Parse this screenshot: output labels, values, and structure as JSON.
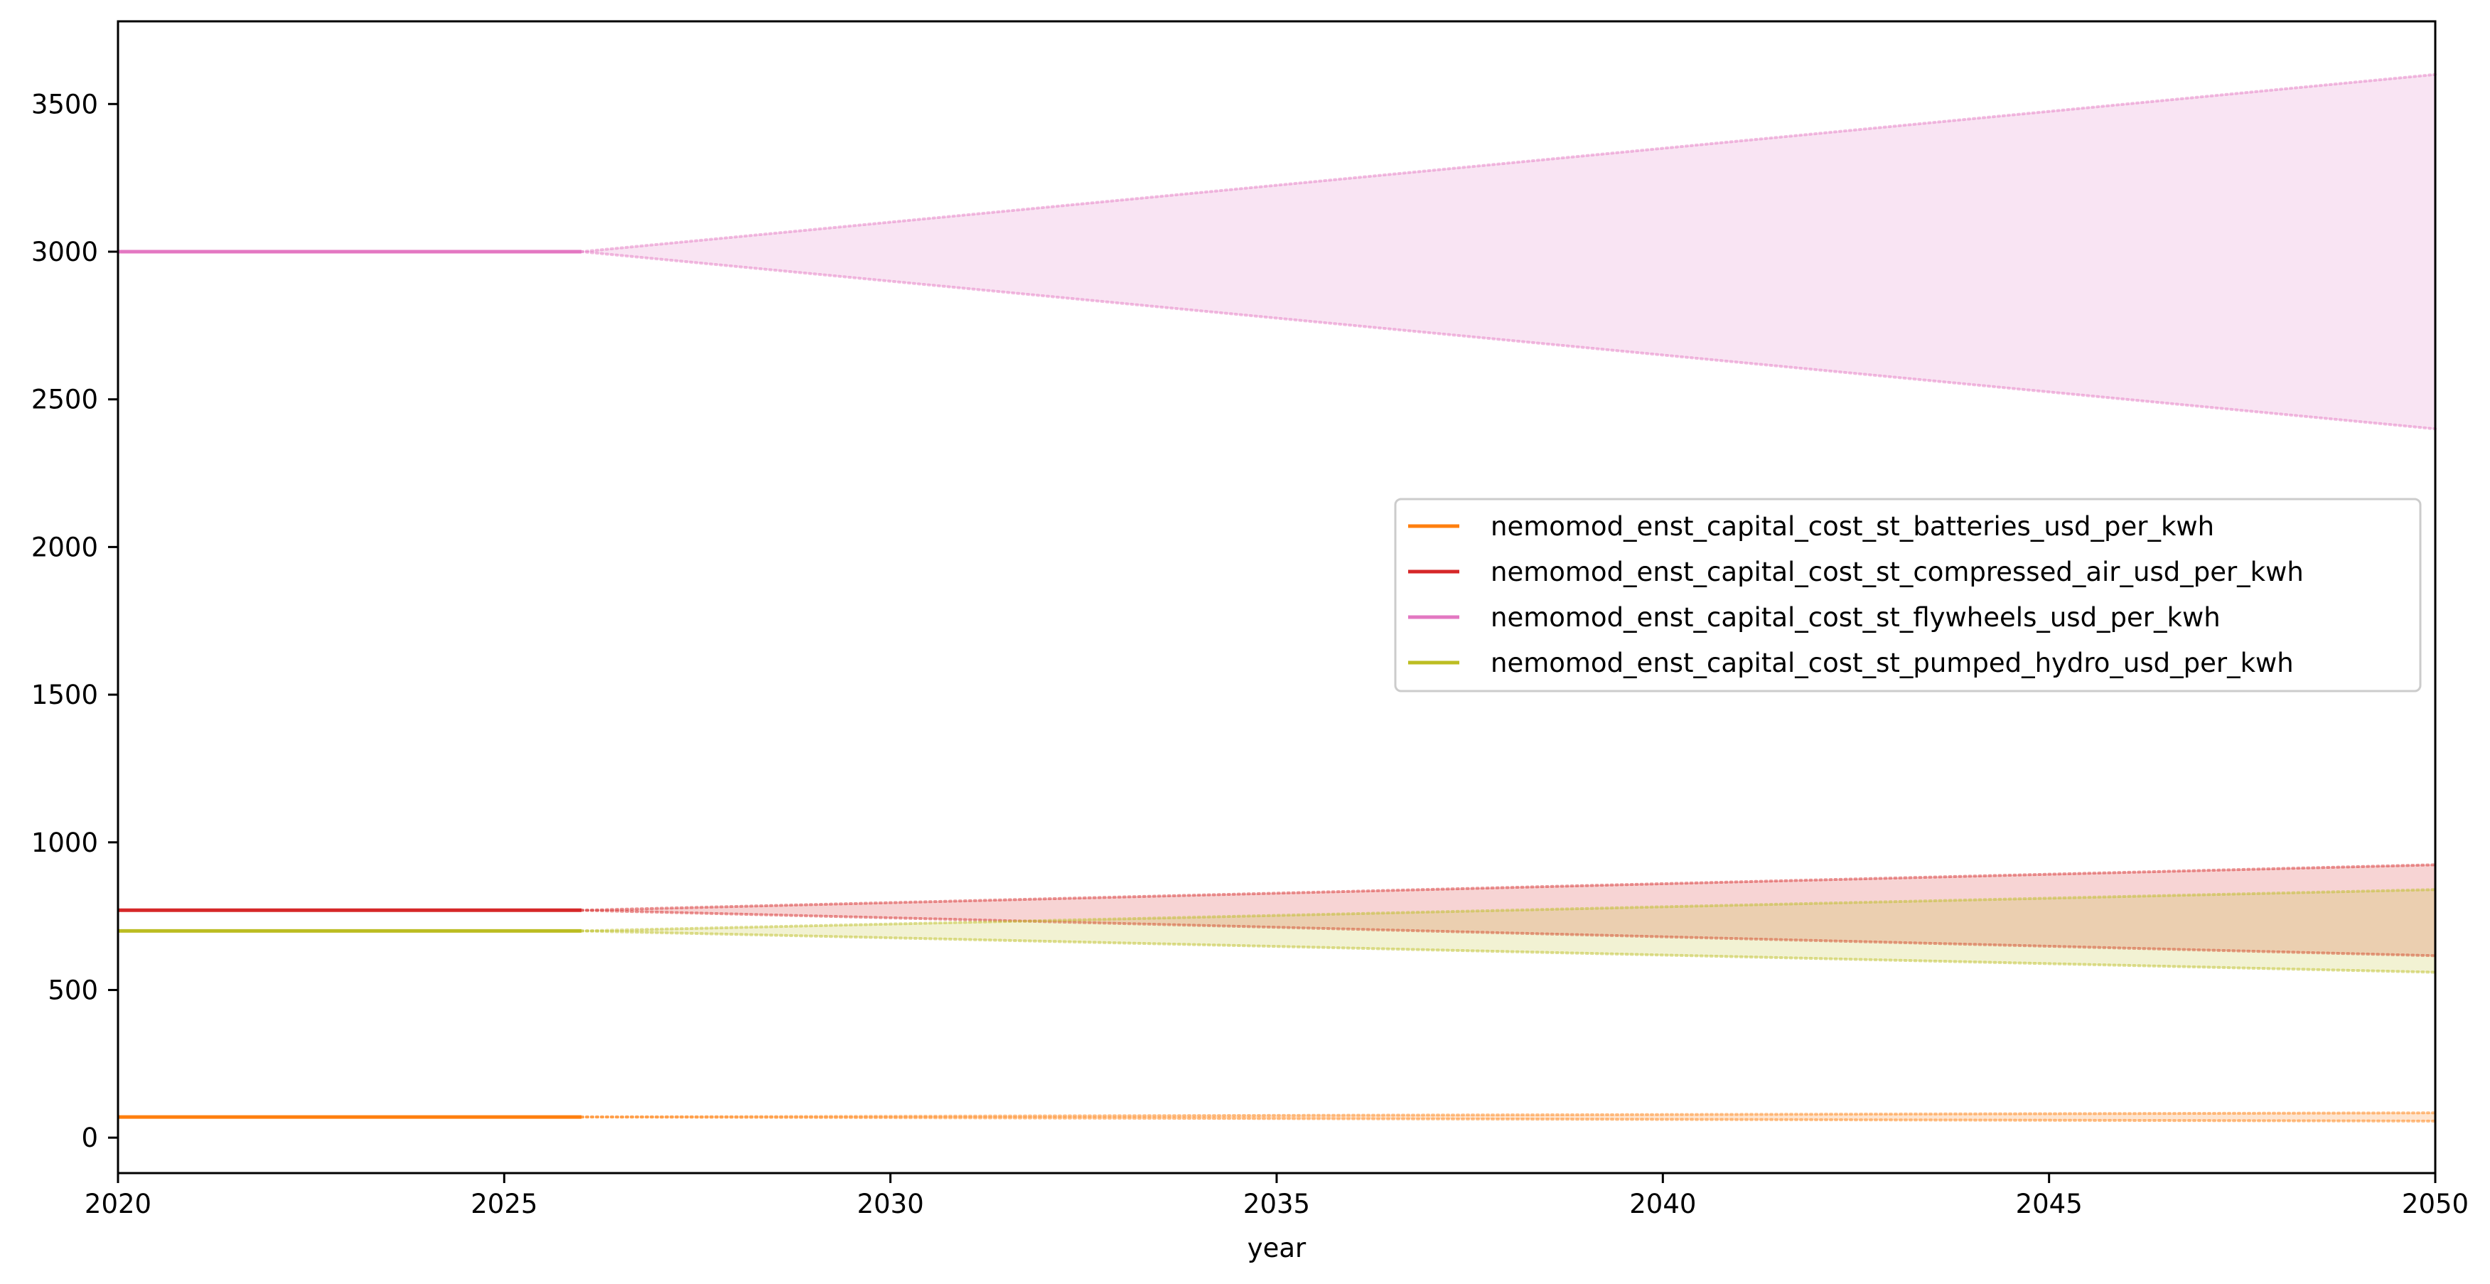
{
  "chart_data": {
    "type": "line",
    "title": "",
    "xlabel": "year",
    "ylabel": "",
    "xlim": [
      2020,
      2050
    ],
    "ylim": [
      -120,
      3780
    ],
    "x_ticks": [
      2020,
      2025,
      2030,
      2035,
      2040,
      2045,
      2050
    ],
    "y_ticks": [
      0,
      500,
      1000,
      1500,
      2000,
      2500,
      3000,
      3500
    ],
    "projection_start": 2026,
    "grid": false,
    "legend_position": "center-right",
    "series": [
      {
        "name": "nemomod_enst_capital_cost_st_batteries_usd_per_kwh",
        "color": "#ff7f0e",
        "historical": {
          "x": [
            2020,
            2026
          ],
          "y": [
            70,
            70
          ]
        },
        "band": {
          "x": [
            2026,
            2050
          ],
          "lower": [
            70,
            56
          ],
          "upper": [
            70,
            84
          ]
        }
      },
      {
        "name": "nemomod_enst_capital_cost_st_compressed_air_usd_per_kwh",
        "color": "#d62728",
        "historical": {
          "x": [
            2020,
            2026
          ],
          "y": [
            770,
            770
          ]
        },
        "band": {
          "x": [
            2026,
            2050
          ],
          "lower": [
            770,
            616
          ],
          "upper": [
            770,
            924
          ]
        }
      },
      {
        "name": "nemomod_enst_capital_cost_st_flywheels_usd_per_kwh",
        "color": "#e377c2",
        "historical": {
          "x": [
            2020,
            2026
          ],
          "y": [
            3000,
            3000
          ]
        },
        "band": {
          "x": [
            2026,
            2050
          ],
          "lower": [
            3000,
            2400
          ],
          "upper": [
            3000,
            3600
          ]
        }
      },
      {
        "name": "nemomod_enst_capital_cost_st_pumped_hydro_usd_per_kwh",
        "color": "#bcbd22",
        "historical": {
          "x": [
            2020,
            2026
          ],
          "y": [
            700,
            700
          ]
        },
        "band": {
          "x": [
            2026,
            2050
          ],
          "lower": [
            700,
            560
          ],
          "upper": [
            700,
            840
          ]
        }
      }
    ]
  }
}
